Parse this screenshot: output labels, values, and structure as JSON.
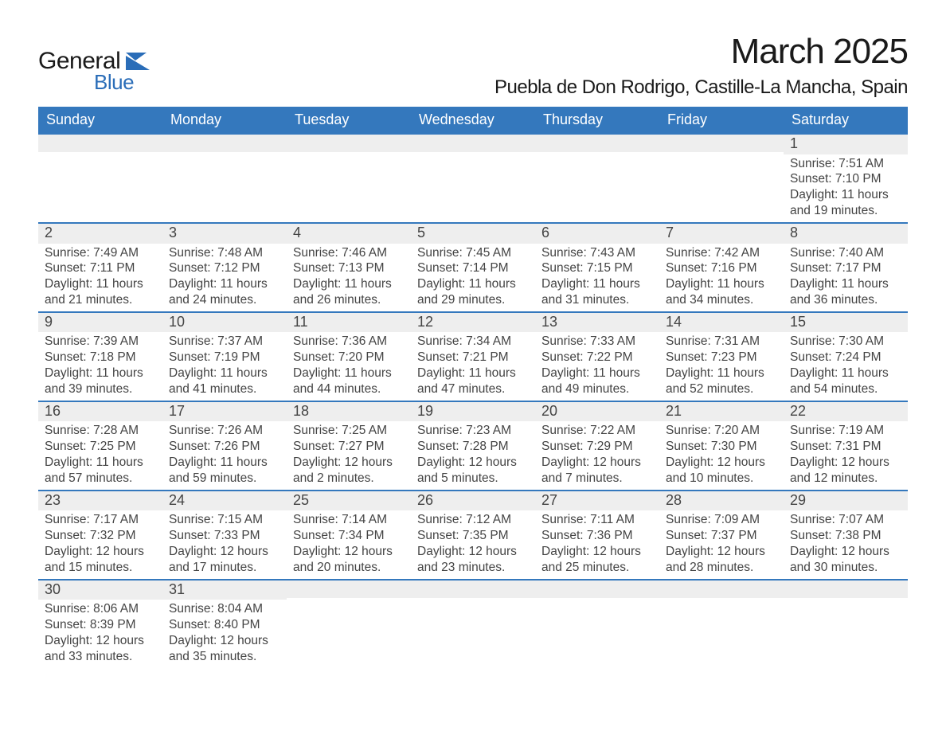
{
  "logo": {
    "word1": "General",
    "word2": "Blue"
  },
  "title": {
    "month": "March 2025",
    "location": "Puebla de Don Rodrigo, Castille-La Mancha, Spain"
  },
  "colors": {
    "header_bg": "#3478bd",
    "header_text": "#ffffff",
    "daynum_bg": "#eeeeee",
    "row_separator": "#3478bd",
    "body_text": "#444444",
    "logo_blue": "#2a6db8"
  },
  "day_headers": [
    "Sunday",
    "Monday",
    "Tuesday",
    "Wednesday",
    "Thursday",
    "Friday",
    "Saturday"
  ],
  "weeks": [
    [
      null,
      null,
      null,
      null,
      null,
      null,
      {
        "n": "1",
        "sunrise": "Sunrise: 7:51 AM",
        "sunset": "Sunset: 7:10 PM",
        "d1": "Daylight: 11 hours",
        "d2": "and 19 minutes."
      }
    ],
    [
      {
        "n": "2",
        "sunrise": "Sunrise: 7:49 AM",
        "sunset": "Sunset: 7:11 PM",
        "d1": "Daylight: 11 hours",
        "d2": "and 21 minutes."
      },
      {
        "n": "3",
        "sunrise": "Sunrise: 7:48 AM",
        "sunset": "Sunset: 7:12 PM",
        "d1": "Daylight: 11 hours",
        "d2": "and 24 minutes."
      },
      {
        "n": "4",
        "sunrise": "Sunrise: 7:46 AM",
        "sunset": "Sunset: 7:13 PM",
        "d1": "Daylight: 11 hours",
        "d2": "and 26 minutes."
      },
      {
        "n": "5",
        "sunrise": "Sunrise: 7:45 AM",
        "sunset": "Sunset: 7:14 PM",
        "d1": "Daylight: 11 hours",
        "d2": "and 29 minutes."
      },
      {
        "n": "6",
        "sunrise": "Sunrise: 7:43 AM",
        "sunset": "Sunset: 7:15 PM",
        "d1": "Daylight: 11 hours",
        "d2": "and 31 minutes."
      },
      {
        "n": "7",
        "sunrise": "Sunrise: 7:42 AM",
        "sunset": "Sunset: 7:16 PM",
        "d1": "Daylight: 11 hours",
        "d2": "and 34 minutes."
      },
      {
        "n": "8",
        "sunrise": "Sunrise: 7:40 AM",
        "sunset": "Sunset: 7:17 PM",
        "d1": "Daylight: 11 hours",
        "d2": "and 36 minutes."
      }
    ],
    [
      {
        "n": "9",
        "sunrise": "Sunrise: 7:39 AM",
        "sunset": "Sunset: 7:18 PM",
        "d1": "Daylight: 11 hours",
        "d2": "and 39 minutes."
      },
      {
        "n": "10",
        "sunrise": "Sunrise: 7:37 AM",
        "sunset": "Sunset: 7:19 PM",
        "d1": "Daylight: 11 hours",
        "d2": "and 41 minutes."
      },
      {
        "n": "11",
        "sunrise": "Sunrise: 7:36 AM",
        "sunset": "Sunset: 7:20 PM",
        "d1": "Daylight: 11 hours",
        "d2": "and 44 minutes."
      },
      {
        "n": "12",
        "sunrise": "Sunrise: 7:34 AM",
        "sunset": "Sunset: 7:21 PM",
        "d1": "Daylight: 11 hours",
        "d2": "and 47 minutes."
      },
      {
        "n": "13",
        "sunrise": "Sunrise: 7:33 AM",
        "sunset": "Sunset: 7:22 PM",
        "d1": "Daylight: 11 hours",
        "d2": "and 49 minutes."
      },
      {
        "n": "14",
        "sunrise": "Sunrise: 7:31 AM",
        "sunset": "Sunset: 7:23 PM",
        "d1": "Daylight: 11 hours",
        "d2": "and 52 minutes."
      },
      {
        "n": "15",
        "sunrise": "Sunrise: 7:30 AM",
        "sunset": "Sunset: 7:24 PM",
        "d1": "Daylight: 11 hours",
        "d2": "and 54 minutes."
      }
    ],
    [
      {
        "n": "16",
        "sunrise": "Sunrise: 7:28 AM",
        "sunset": "Sunset: 7:25 PM",
        "d1": "Daylight: 11 hours",
        "d2": "and 57 minutes."
      },
      {
        "n": "17",
        "sunrise": "Sunrise: 7:26 AM",
        "sunset": "Sunset: 7:26 PM",
        "d1": "Daylight: 11 hours",
        "d2": "and 59 minutes."
      },
      {
        "n": "18",
        "sunrise": "Sunrise: 7:25 AM",
        "sunset": "Sunset: 7:27 PM",
        "d1": "Daylight: 12 hours",
        "d2": "and 2 minutes."
      },
      {
        "n": "19",
        "sunrise": "Sunrise: 7:23 AM",
        "sunset": "Sunset: 7:28 PM",
        "d1": "Daylight: 12 hours",
        "d2": "and 5 minutes."
      },
      {
        "n": "20",
        "sunrise": "Sunrise: 7:22 AM",
        "sunset": "Sunset: 7:29 PM",
        "d1": "Daylight: 12 hours",
        "d2": "and 7 minutes."
      },
      {
        "n": "21",
        "sunrise": "Sunrise: 7:20 AM",
        "sunset": "Sunset: 7:30 PM",
        "d1": "Daylight: 12 hours",
        "d2": "and 10 minutes."
      },
      {
        "n": "22",
        "sunrise": "Sunrise: 7:19 AM",
        "sunset": "Sunset: 7:31 PM",
        "d1": "Daylight: 12 hours",
        "d2": "and 12 minutes."
      }
    ],
    [
      {
        "n": "23",
        "sunrise": "Sunrise: 7:17 AM",
        "sunset": "Sunset: 7:32 PM",
        "d1": "Daylight: 12 hours",
        "d2": "and 15 minutes."
      },
      {
        "n": "24",
        "sunrise": "Sunrise: 7:15 AM",
        "sunset": "Sunset: 7:33 PM",
        "d1": "Daylight: 12 hours",
        "d2": "and 17 minutes."
      },
      {
        "n": "25",
        "sunrise": "Sunrise: 7:14 AM",
        "sunset": "Sunset: 7:34 PM",
        "d1": "Daylight: 12 hours",
        "d2": "and 20 minutes."
      },
      {
        "n": "26",
        "sunrise": "Sunrise: 7:12 AM",
        "sunset": "Sunset: 7:35 PM",
        "d1": "Daylight: 12 hours",
        "d2": "and 23 minutes."
      },
      {
        "n": "27",
        "sunrise": "Sunrise: 7:11 AM",
        "sunset": "Sunset: 7:36 PM",
        "d1": "Daylight: 12 hours",
        "d2": "and 25 minutes."
      },
      {
        "n": "28",
        "sunrise": "Sunrise: 7:09 AM",
        "sunset": "Sunset: 7:37 PM",
        "d1": "Daylight: 12 hours",
        "d2": "and 28 minutes."
      },
      {
        "n": "29",
        "sunrise": "Sunrise: 7:07 AM",
        "sunset": "Sunset: 7:38 PM",
        "d1": "Daylight: 12 hours",
        "d2": "and 30 minutes."
      }
    ],
    [
      {
        "n": "30",
        "sunrise": "Sunrise: 8:06 AM",
        "sunset": "Sunset: 8:39 PM",
        "d1": "Daylight: 12 hours",
        "d2": "and 33 minutes."
      },
      {
        "n": "31",
        "sunrise": "Sunrise: 8:04 AM",
        "sunset": "Sunset: 8:40 PM",
        "d1": "Daylight: 12 hours",
        "d2": "and 35 minutes."
      },
      null,
      null,
      null,
      null,
      null
    ]
  ]
}
